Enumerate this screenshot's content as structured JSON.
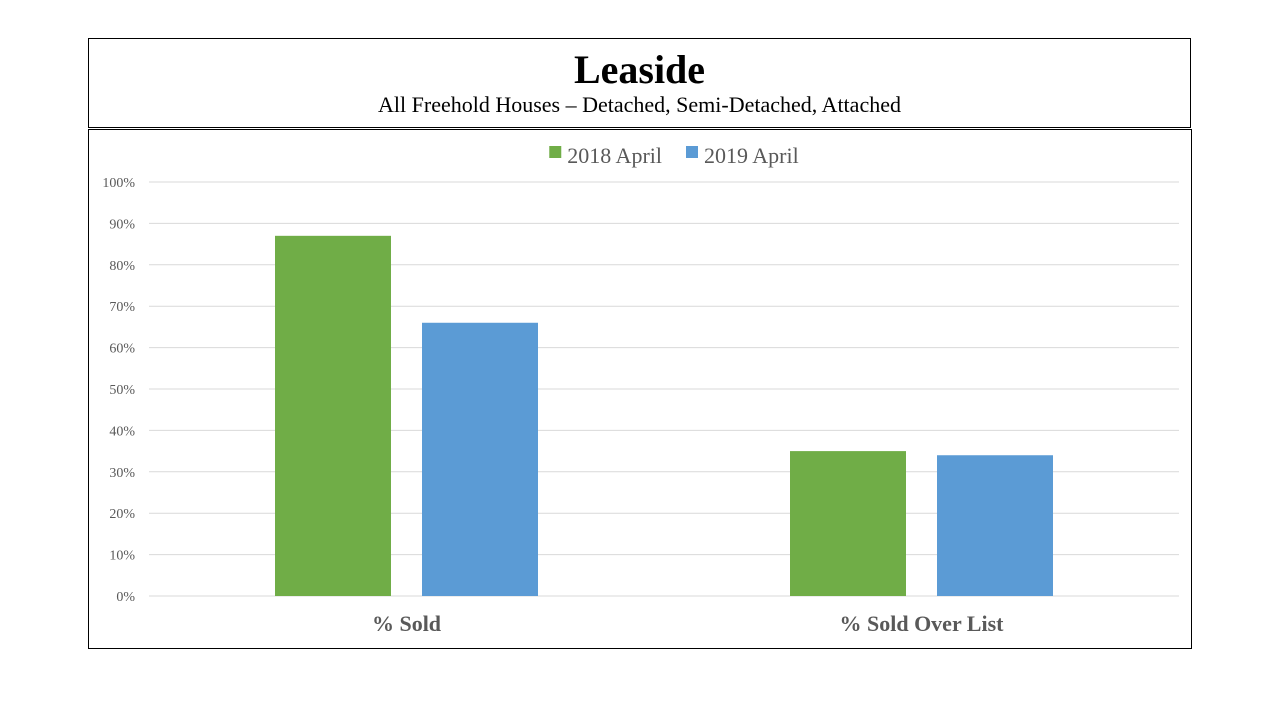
{
  "header": {
    "title": "Leaside",
    "subtitle": "All Freehold Houses – Detached, Semi-Detached, Attached"
  },
  "chart_data": {
    "type": "bar",
    "title": "Leaside",
    "subtitle": "All Freehold Houses – Detached, Semi-Detached, Attached",
    "categories": [
      "% Sold",
      "% Sold Over List"
    ],
    "series": [
      {
        "name": "2018 April",
        "color": "#70ad47",
        "values": [
          0.87,
          0.35
        ]
      },
      {
        "name": "2019 April",
        "color": "#5b9bd5",
        "values": [
          0.66,
          0.34
        ]
      }
    ],
    "ylim": [
      0,
      1
    ],
    "yticks": [
      "0%",
      "10%",
      "20%",
      "30%",
      "40%",
      "50%",
      "60%",
      "70%",
      "80%",
      "90%",
      "100%"
    ],
    "xlabel": "",
    "ylabel": "",
    "grid": true,
    "legend": "top-center"
  }
}
